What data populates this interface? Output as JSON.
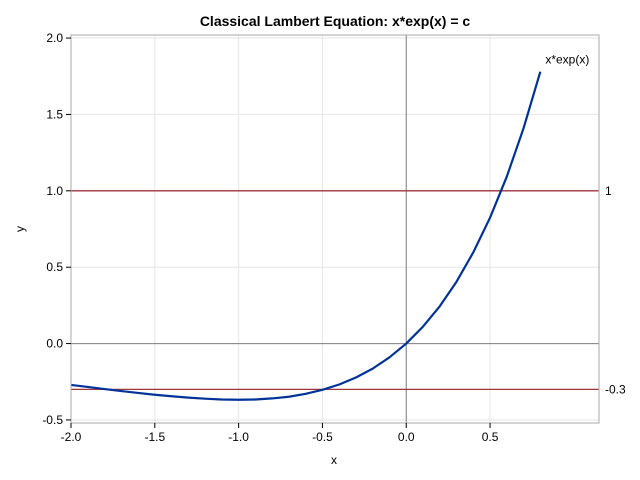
{
  "chart_data": {
    "type": "line",
    "title": "Classical Lambert Equation: x*exp(x) = c",
    "xlabel": "x",
    "ylabel": "y",
    "xlim": [
      -2.0,
      1.15
    ],
    "ylim": [
      -0.52,
      2.02
    ],
    "x_ticks": [
      -2.0,
      -1.5,
      -1.0,
      -0.5,
      0.0,
      0.5
    ],
    "x_tick_labels": [
      "-2.0",
      "-1.5",
      "-1.0",
      "-0.5",
      "0.0",
      "0.5"
    ],
    "y_ticks": [
      -0.5,
      0.0,
      0.5,
      1.0,
      1.5,
      2.0
    ],
    "y_tick_labels": [
      "-0.5",
      "0.0",
      "0.5",
      "1.0",
      "1.5",
      "2.0"
    ],
    "grid": true,
    "series": [
      {
        "name": "x*exp(x)",
        "x": [
          -2.0,
          -1.9,
          -1.8,
          -1.7,
          -1.6,
          -1.5,
          -1.4,
          -1.3,
          -1.2,
          -1.1,
          -1.0,
          -0.9,
          -0.8,
          -0.7,
          -0.6,
          -0.5,
          -0.4,
          -0.3,
          -0.2,
          -0.1,
          0.0,
          0.1,
          0.2,
          0.3,
          0.4,
          0.5,
          0.6,
          0.7,
          0.8
        ],
        "y": [
          -0.271,
          -0.284,
          -0.298,
          -0.311,
          -0.323,
          -0.335,
          -0.345,
          -0.354,
          -0.361,
          -0.366,
          -0.368,
          -0.366,
          -0.359,
          -0.348,
          -0.329,
          -0.303,
          -0.268,
          -0.222,
          -0.164,
          -0.09,
          0.0,
          0.111,
          0.244,
          0.405,
          0.597,
          0.824,
          1.093,
          1.41,
          1.78
        ],
        "color": "#003399"
      }
    ],
    "reference_lines": [
      {
        "y": 1.0,
        "label": "1",
        "color": "#a0363c"
      },
      {
        "y": -0.3,
        "label": "-0.3",
        "color": "#a0363c"
      }
    ],
    "zero_lines": {
      "x": 0.0,
      "y": 0.0,
      "color": "#808080"
    }
  }
}
